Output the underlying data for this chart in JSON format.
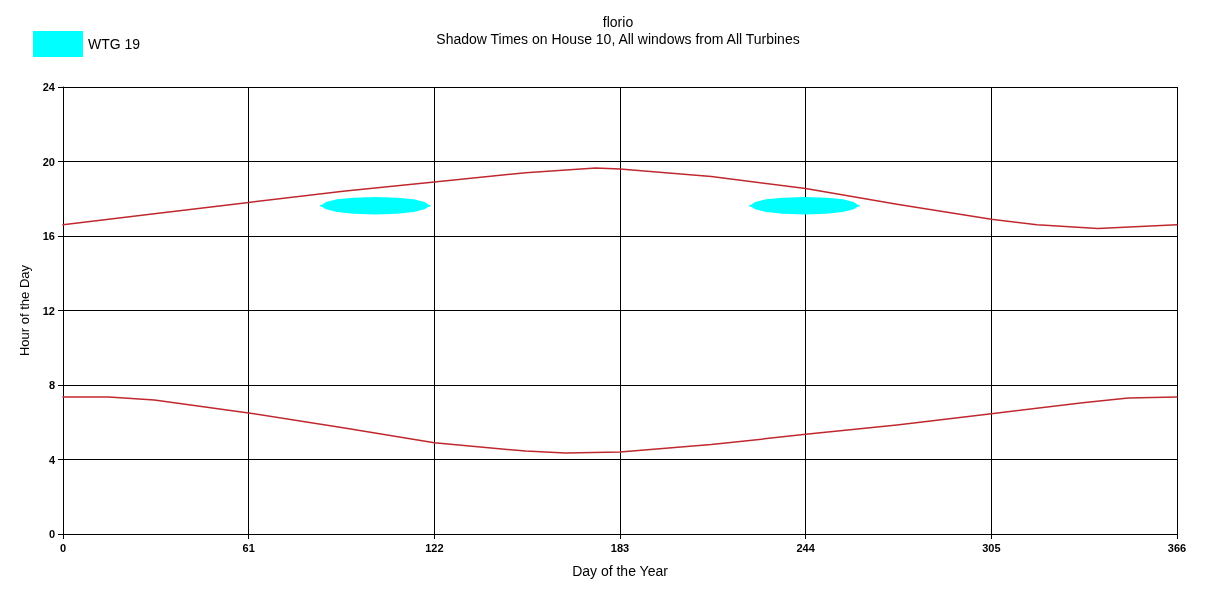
{
  "chart_data": {
    "type": "line",
    "title": "florio",
    "subtitle": "Shadow Times on House 10, All windows from All Turbines",
    "xlabel": "Day of the Year",
    "ylabel": "Hour of the Day",
    "xlim": [
      0,
      366
    ],
    "xticks": [
      0,
      61,
      122,
      183,
      244,
      305,
      366
    ],
    "ylim": [
      0,
      24
    ],
    "yticks": [
      0,
      4,
      8,
      12,
      16,
      20,
      24
    ],
    "grid": true,
    "legend": "top left",
    "marker": "none",
    "line_style": "solid",
    "series": [
      {
        "color": "#c0282e",
        "x": [
          0,
          30,
          61,
          92,
          122,
          152,
          175,
          183,
          213,
          244,
          274,
          305,
          320,
          340,
          366
        ],
        "values": [
          16.6,
          17.2,
          17.8,
          18.4,
          18.9,
          19.4,
          19.65,
          19.6,
          19.2,
          18.55,
          17.7,
          16.9,
          16.6,
          16.4,
          16.6
        ]
      },
      {
        "color": "#c0282e",
        "x": [
          0,
          15,
          30,
          61,
          92,
          122,
          152,
          165,
          183,
          213,
          244,
          274,
          305,
          335,
          350,
          366
        ],
        "values": [
          7.35,
          7.35,
          7.2,
          6.5,
          5.7,
          4.9,
          4.45,
          4.35,
          4.4,
          4.8,
          5.35,
          5.85,
          6.45,
          7.05,
          7.3,
          7.35
        ]
      },
      {
        "name": "WTG 19",
        "color": "#00ffff",
        "x": [
          84.6,
          86.4,
          90,
          95.4,
          102.6,
          109.8,
          115.2,
          118.8,
          120.6,
          null,
          225.6,
          227.4,
          231,
          236.4,
          243.6,
          250.8,
          256.2,
          259.8,
          261.6
        ],
        "values": [
          17.63,
          17.63,
          17.63,
          17.63,
          17.63,
          17.63,
          17.63,
          17.63,
          17.63,
          null,
          17.63,
          17.63,
          17.63,
          17.63,
          17.63,
          17.63,
          17.63,
          17.63,
          17.63
        ],
        "lower": [
          17.63,
          17.43,
          17.29,
          17.2,
          17.16,
          17.2,
          17.29,
          17.43,
          17.63,
          null,
          17.63,
          17.43,
          17.29,
          17.2,
          17.16,
          17.2,
          17.29,
          17.43,
          17.63
        ],
        "upper": [
          17.63,
          17.83,
          17.97,
          18.06,
          18.1,
          18.06,
          17.97,
          17.83,
          17.63,
          null,
          17.63,
          17.83,
          17.97,
          18.06,
          18.1,
          18.06,
          17.97,
          17.83,
          17.63
        ]
      }
    ]
  }
}
